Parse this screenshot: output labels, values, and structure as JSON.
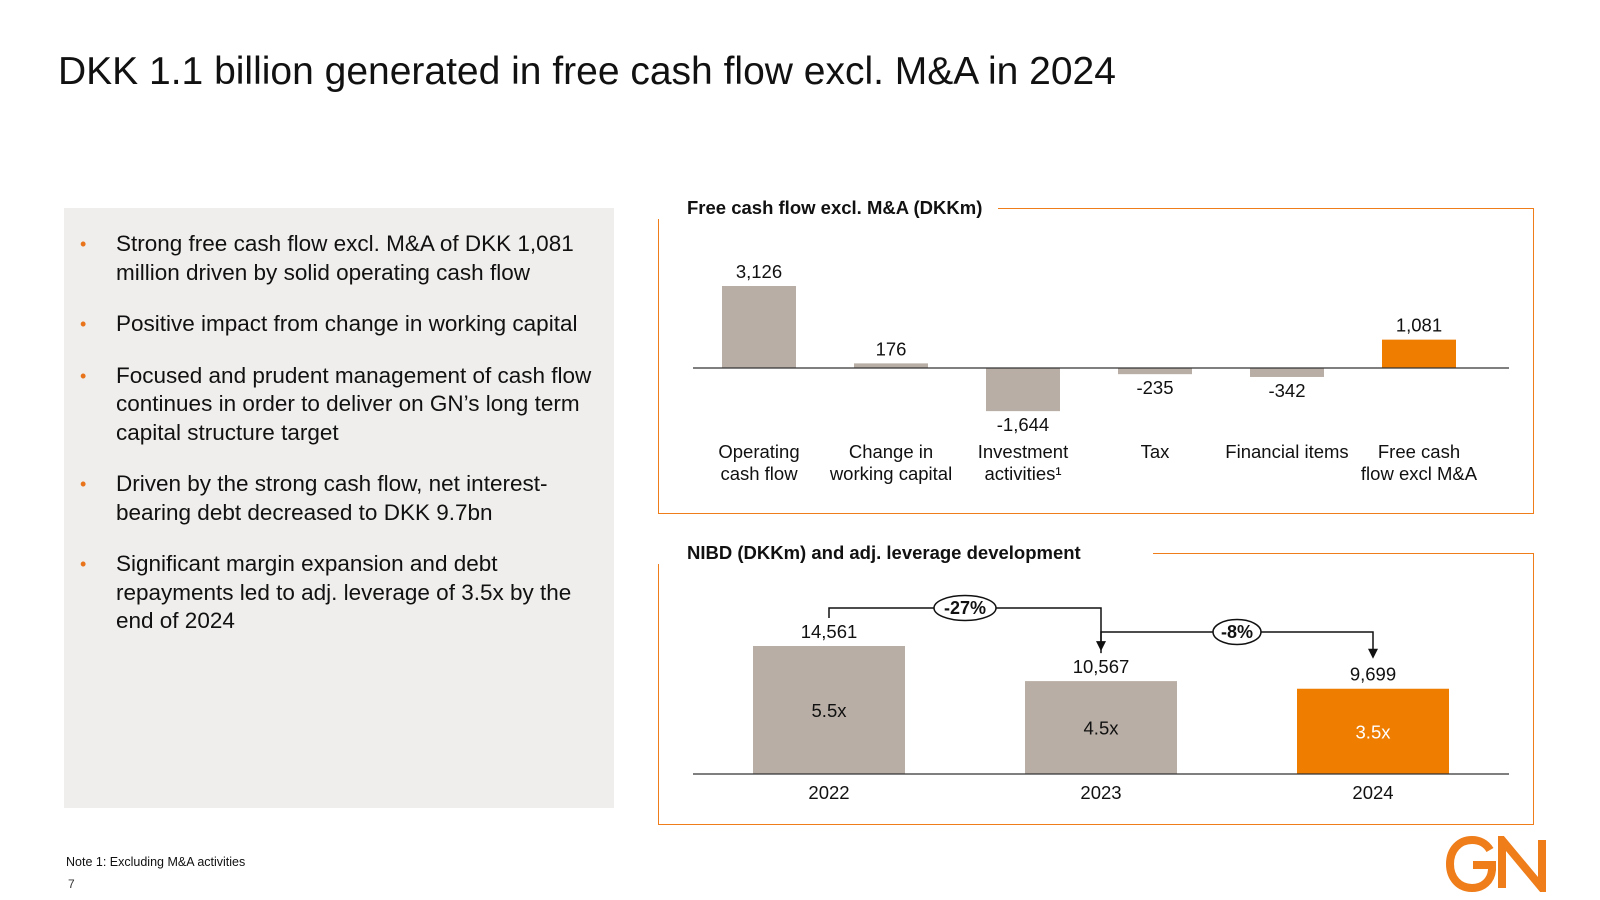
{
  "title": "DKK 1.1 billion generated in free cash flow excl. M&A in 2024",
  "bullets": [
    "Strong free cash flow excl. M&A of DKK 1,081 million driven by solid operating cash flow",
    "Positive impact from change in working capital",
    "Focused and prudent management of cash flow continues in order to deliver on GN’s long term capital structure target",
    "Driven by the strong cash flow, net interest-bearing debt decreased to DKK 9.7bn",
    "Significant margin expansion and debt repayments led to adj. leverage of 3.5x by the end of 2024"
  ],
  "colors": {
    "accent": "#ee7d1a",
    "bar_grey": "#b8aea5",
    "bar_orange": "#ee7d00"
  },
  "chart_data": [
    {
      "type": "bar",
      "title": "Free cash flow excl. M&A (DKKm)",
      "categories": [
        [
          "Operating",
          "cash flow"
        ],
        [
          "Change in",
          "working capital"
        ],
        [
          "Investment",
          "activities¹"
        ],
        [
          "Tax"
        ],
        [
          "Financial items"
        ],
        [
          "Free cash",
          "flow excl M&A"
        ]
      ],
      "values": [
        3126,
        176,
        -1644,
        -235,
        -342,
        1081
      ],
      "value_labels": [
        "3,126",
        "176",
        "-1,644",
        "-235",
        "-342",
        "1,081"
      ],
      "highlight": [
        false,
        false,
        false,
        false,
        false,
        true
      ],
      "ylim": [
        -1800,
        3300
      ]
    },
    {
      "type": "bar",
      "title": "NIBD (DKKm) and adj. leverage development",
      "categories": [
        "2022",
        "2023",
        "2024"
      ],
      "values": [
        14561,
        10567,
        9699
      ],
      "value_labels": [
        "14,561",
        "10,567",
        "9,699"
      ],
      "leverage_labels": [
        "5.5x",
        "4.5x",
        "3.5x"
      ],
      "highlight": [
        false,
        false,
        true
      ],
      "ylim": [
        0,
        16000
      ],
      "changes": [
        {
          "from": "2022",
          "to": "2023",
          "label": "-27%"
        },
        {
          "from": "2023",
          "to": "2024",
          "label": "-8%"
        }
      ]
    }
  ],
  "footnote": "Note 1: Excluding M&A activities",
  "page_number": "7",
  "logo_text": "GN"
}
